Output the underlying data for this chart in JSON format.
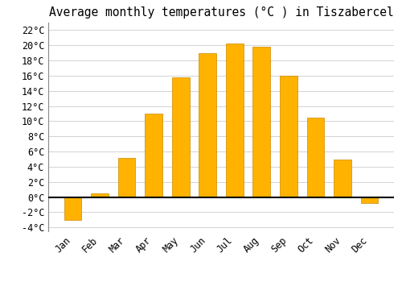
{
  "title": "Average monthly temperatures (°C ) in Tiszabercel",
  "months": [
    "Jan",
    "Feb",
    "Mar",
    "Apr",
    "May",
    "Jun",
    "Jul",
    "Aug",
    "Sep",
    "Oct",
    "Nov",
    "Dec"
  ],
  "values": [
    -3.0,
    0.5,
    5.2,
    11.0,
    15.8,
    19.0,
    20.2,
    19.8,
    16.0,
    10.5,
    4.9,
    -0.8
  ],
  "bar_color": "#FFB300",
  "bar_edge_color": "#CC8800",
  "ylim": [
    -4.5,
    23
  ],
  "yticks": [
    -4,
    -2,
    0,
    2,
    4,
    6,
    8,
    10,
    12,
    14,
    16,
    18,
    20,
    22
  ],
  "background_color": "#ffffff",
  "grid_color": "#cccccc",
  "title_fontsize": 10.5,
  "tick_fontsize": 8.5,
  "font_family": "monospace",
  "bar_width": 0.65
}
